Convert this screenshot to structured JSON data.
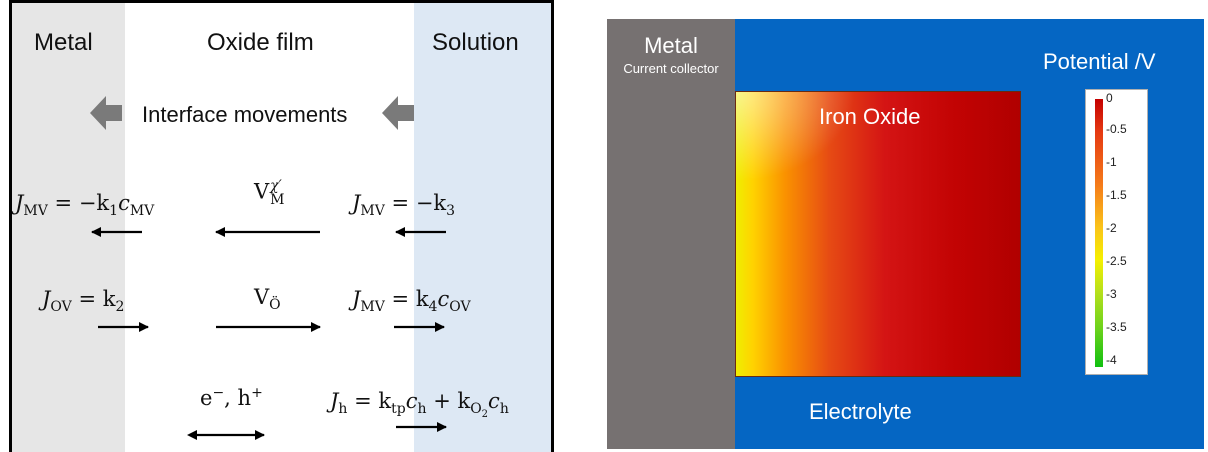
{
  "left_diagram": {
    "zones": {
      "metal": "Metal",
      "oxide": "Oxide film",
      "solution": "Solution"
    },
    "interface_text": "Interface movements",
    "equations": {
      "eq1": {
        "lhs_var": "J",
        "lhs_sub": "MV",
        "rhs": " = −k",
        "rhs_sub": "1",
        "rhs2": "c",
        "rhs2_sub": "MV"
      },
      "eq2": {
        "var": "V",
        "sup": "χ′",
        "sub": "M"
      },
      "eq3": {
        "lhs_var": "J",
        "lhs_sub": "MV",
        "rhs": " = −k",
        "rhs_sub": "3"
      },
      "eq4": {
        "lhs_var": "J",
        "lhs_sub": "OV",
        "rhs": " = k",
        "rhs_sub": "2"
      },
      "eq5": {
        "var": "V",
        "sub": "Ö"
      },
      "eq6": {
        "lhs_var": "J",
        "lhs_sub": "MV",
        "rhs": " = k",
        "rhs_sub": "4",
        "rhs2": "c",
        "rhs2_sub": "OV"
      },
      "eq7": {
        "text": "e",
        "sup1": "−",
        "mid": ", h",
        "sup2": "+"
      },
      "eq8": {
        "lhs_var": "J",
        "lhs_sub": "h",
        "rhs": " = k",
        "rhs_sub": "tp",
        "rhs2": "c",
        "rhs2_sub": "h",
        "plus": " + k",
        "k_sub": "O",
        "k_subsub": "2",
        "rhs3": "c",
        "rhs3_sub": "h"
      }
    }
  },
  "right_figure": {
    "metal_title": "Metal",
    "metal_subtitle": "Current collector",
    "oxide_label": "Iron Oxide",
    "electrolyte_label": "Electrolyte",
    "potential_title": "Potential /V",
    "colorbar_ticks": [
      "0",
      "-0.5",
      "-1",
      "-1.5",
      "-2",
      "-2.5",
      "-3",
      "-3.5",
      "-4"
    ],
    "colors": {
      "background": "#0566c3",
      "metal": "#767171"
    }
  }
}
